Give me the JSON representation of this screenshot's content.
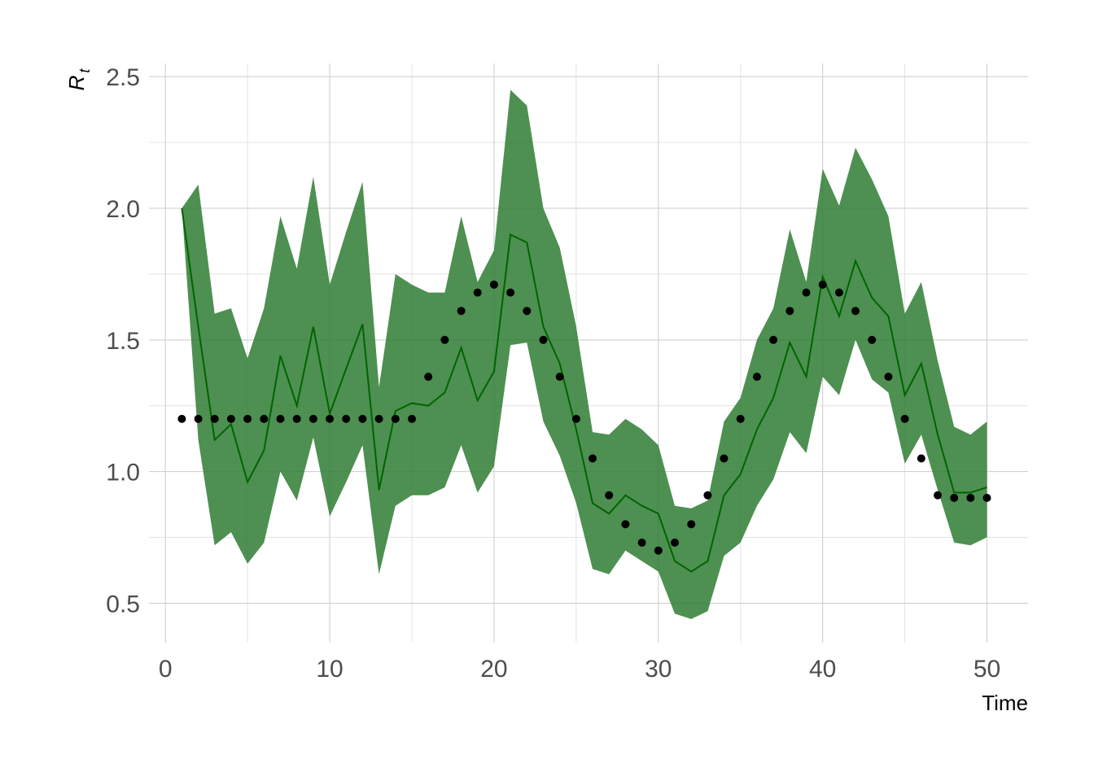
{
  "chart_data": {
    "type": "line",
    "title": "",
    "xlabel": "Time",
    "ylabel_main": "R",
    "ylabel_sub": "t",
    "xlim": [
      -1,
      52.5
    ],
    "ylim": [
      0.35,
      2.55
    ],
    "x_ticks": [
      0,
      10,
      20,
      30,
      40,
      50
    ],
    "x_tick_labels": [
      "0",
      "10",
      "20",
      "30",
      "40",
      "50"
    ],
    "y_ticks": [
      0.5,
      1.0,
      1.5,
      2.0,
      2.5
    ],
    "y_tick_labels": [
      "0.5",
      "1.0",
      "1.5",
      "2.0",
      "2.5"
    ],
    "grid": true,
    "legend": "none",
    "colors": {
      "ribbon": "#2e7d32",
      "line": "#006400",
      "points": "#000000"
    },
    "x": [
      1,
      2,
      3,
      4,
      5,
      6,
      7,
      8,
      9,
      10,
      11,
      12,
      13,
      14,
      15,
      16,
      17,
      18,
      19,
      20,
      21,
      22,
      23,
      24,
      25,
      26,
      27,
      28,
      29,
      30,
      31,
      32,
      33,
      34,
      35,
      36,
      37,
      38,
      39,
      40,
      41,
      42,
      43,
      44,
      45,
      46,
      47,
      48,
      49,
      50
    ],
    "series": [
      {
        "type": "ribbon",
        "lower": [
          2.0,
          1.12,
          0.72,
          0.77,
          0.65,
          0.73,
          1.0,
          0.89,
          1.13,
          0.83,
          0.96,
          1.1,
          0.61,
          0.87,
          0.91,
          0.91,
          0.94,
          1.1,
          0.92,
          1.02,
          1.48,
          1.49,
          1.19,
          1.06,
          0.88,
          0.63,
          0.61,
          0.7,
          0.66,
          0.62,
          0.46,
          0.44,
          0.47,
          0.68,
          0.73,
          0.87,
          0.97,
          1.15,
          1.07,
          1.36,
          1.29,
          1.5,
          1.35,
          1.3,
          1.03,
          1.14,
          0.93,
          0.73,
          0.72,
          0.75
        ],
        "upper": [
          2.0,
          2.09,
          1.6,
          1.62,
          1.43,
          1.62,
          1.97,
          1.77,
          2.12,
          1.71,
          1.91,
          2.1,
          1.32,
          1.75,
          1.71,
          1.68,
          1.68,
          1.97,
          1.72,
          1.84,
          2.45,
          2.39,
          2.0,
          1.85,
          1.55,
          1.15,
          1.14,
          1.2,
          1.16,
          1.1,
          0.87,
          0.86,
          0.89,
          1.19,
          1.28,
          1.5,
          1.62,
          1.92,
          1.72,
          2.15,
          2.01,
          2.23,
          2.11,
          1.97,
          1.6,
          1.72,
          1.42,
          1.17,
          1.14,
          1.19
        ]
      },
      {
        "type": "line",
        "values": [
          2.0,
          1.55,
          1.12,
          1.18,
          0.96,
          1.08,
          1.44,
          1.25,
          1.55,
          1.22,
          1.39,
          1.56,
          0.93,
          1.23,
          1.26,
          1.25,
          1.3,
          1.47,
          1.27,
          1.38,
          1.9,
          1.87,
          1.55,
          1.41,
          1.16,
          0.88,
          0.84,
          0.91,
          0.87,
          0.84,
          0.66,
          0.62,
          0.66,
          0.91,
          0.99,
          1.16,
          1.28,
          1.49,
          1.36,
          1.74,
          1.59,
          1.8,
          1.66,
          1.59,
          1.29,
          1.41,
          1.14,
          0.92,
          0.92,
          0.94
        ]
      },
      {
        "type": "points",
        "values": [
          1.2,
          1.2,
          1.2,
          1.2,
          1.2,
          1.2,
          1.2,
          1.2,
          1.2,
          1.2,
          1.2,
          1.2,
          1.2,
          1.2,
          1.2,
          1.36,
          1.5,
          1.61,
          1.68,
          1.71,
          1.68,
          1.61,
          1.5,
          1.36,
          1.2,
          1.05,
          0.91,
          0.8,
          0.73,
          0.7,
          0.73,
          0.8,
          0.91,
          1.05,
          1.2,
          1.36,
          1.5,
          1.61,
          1.68,
          1.71,
          1.68,
          1.61,
          1.5,
          1.36,
          1.2,
          1.05,
          0.91,
          0.9,
          0.9,
          0.9
        ]
      }
    ]
  }
}
